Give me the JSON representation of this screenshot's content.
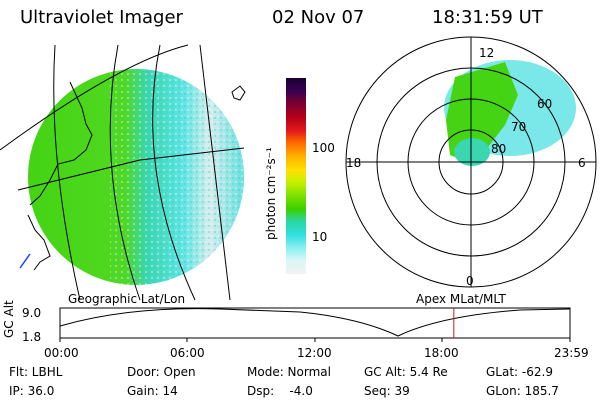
{
  "header": {
    "title": "Ultraviolet Imager",
    "date": "02 Nov 07",
    "time": "18:31:59 UT"
  },
  "colorbar": {
    "label": "photon cm⁻²s⁻¹",
    "ticks": [
      "100",
      "10"
    ],
    "colors": [
      "#1a0033",
      "#3b0050",
      "#7a0030",
      "#b5001a",
      "#e21a1a",
      "#ff6a00",
      "#ffb000",
      "#ffe000",
      "#c8f000",
      "#7de000",
      "#3ad000",
      "#2ad6a0",
      "#30e0e0",
      "#8ef0f0",
      "#dcf6f6",
      "#f2f2f2"
    ]
  },
  "geographic": {
    "caption": "Geographic Lat/Lon"
  },
  "polar": {
    "caption": "Apex MLat/MLT",
    "mlt_labels": {
      "top": "12",
      "bottom": "0",
      "left": "18",
      "right": "6"
    },
    "lat_labels": [
      "60",
      "70",
      "80"
    ]
  },
  "timeline": {
    "axis_label": "GC Alt",
    "y_labels": [
      "9.0",
      "1.8"
    ],
    "x_labels": [
      "00:00",
      "06:00",
      "12:00",
      "18:00",
      "23:59"
    ],
    "marker_fraction": 0.7722
  },
  "info": {
    "filter": "Flt: LBHL",
    "ip": "IP: 36.0",
    "door": "Door: Open",
    "gain": "Gain: 14",
    "mode": "Mode: Normal",
    "dsp": "Dsp:    -4.0",
    "gc_alt": "GC Alt: 5.4 Re",
    "seq": "Seq: 39",
    "glat": "GLat: -62.9",
    "glon": "GLon: 185.7"
  }
}
